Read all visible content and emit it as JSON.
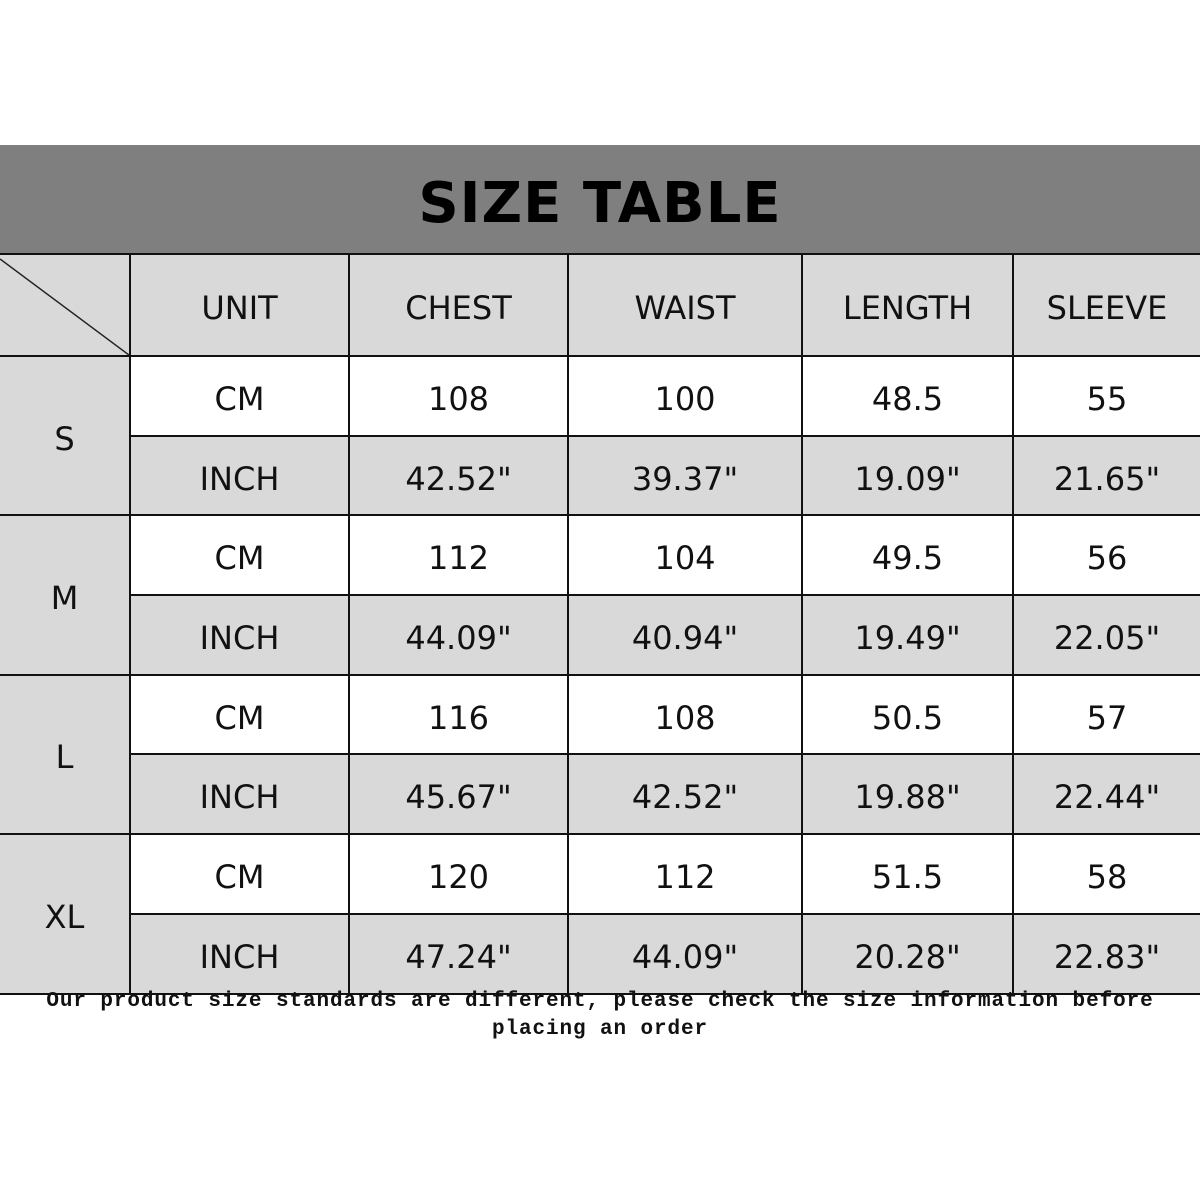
{
  "title": "SIZE TABLE",
  "table": {
    "headers": [
      "UNIT",
      "CHEST",
      "WAIST",
      "LENGTH",
      "SLEEVE"
    ],
    "sizes": [
      {
        "size": "S",
        "cm": {
          "unit": "CM",
          "values": [
            "108",
            "100",
            "48.5",
            "55"
          ]
        },
        "inch": {
          "unit": "INCH",
          "values": [
            "42.52\"",
            "39.37\"",
            "19.09\"",
            "21.65\""
          ]
        }
      },
      {
        "size": "M",
        "cm": {
          "unit": "CM",
          "values": [
            "112",
            "104",
            "49.5",
            "56"
          ]
        },
        "inch": {
          "unit": "INCH",
          "values": [
            "44.09\"",
            "40.94\"",
            "19.49\"",
            "22.05\""
          ]
        }
      },
      {
        "size": "L",
        "cm": {
          "unit": "CM",
          "values": [
            "116",
            "108",
            "50.5",
            "57"
          ]
        },
        "inch": {
          "unit": "INCH",
          "values": [
            "45.67\"",
            "42.52\"",
            "19.88\"",
            "22.44\""
          ]
        }
      },
      {
        "size": "XL",
        "cm": {
          "unit": "CM",
          "values": [
            "120",
            "112",
            "51.5",
            "58"
          ]
        },
        "inch": {
          "unit": "INCH",
          "values": [
            "47.24\"",
            "44.09\"",
            "20.28\"",
            "22.83\""
          ]
        }
      }
    ]
  },
  "note": {
    "line1": "Our product size standards are different, please check the size information before",
    "line2": "placing an order"
  },
  "colors": {
    "title_band": "#7f7f7f",
    "gray_cell": "#d9d9d9",
    "white_cell": "#ffffff"
  }
}
